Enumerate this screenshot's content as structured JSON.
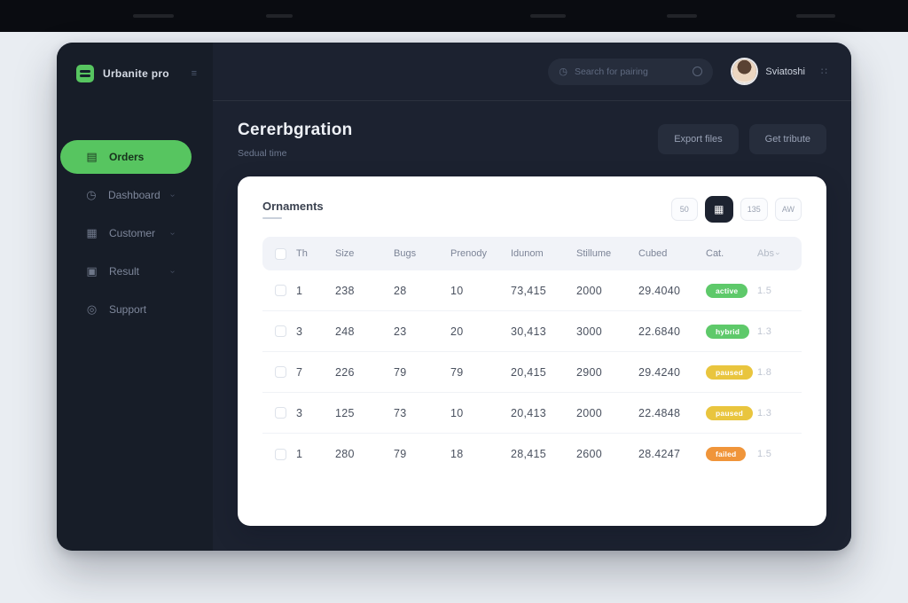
{
  "colors": {
    "accent_green": "#57c560",
    "badge_green": "#5ec96a",
    "badge_yellow": "#e9c53e",
    "badge_orange": "#f0953a",
    "window_bg": "#1c2230",
    "sidebar_bg": "#171d28",
    "card_bg": "#ffffff"
  },
  "sidebar": {
    "logo_text": "Urbanite pro",
    "collapse_icon": "≡",
    "items": [
      {
        "label": "Orders",
        "glyph": "▤",
        "icon": "orders-icon",
        "active": true,
        "chevron": false
      },
      {
        "label": "Dashboard",
        "glyph": "◷",
        "icon": "dashboard-icon",
        "active": false,
        "chevron": true
      },
      {
        "label": "Customer",
        "glyph": "▦",
        "icon": "customer-icon",
        "active": false,
        "chevron": true
      },
      {
        "label": "Result",
        "glyph": "▣",
        "icon": "result-icon",
        "active": false,
        "chevron": true
      },
      {
        "label": "Support",
        "glyph": "◎",
        "icon": "support-icon",
        "active": false,
        "chevron": false
      }
    ]
  },
  "topbar": {
    "search_placeholder": "Search for pairing",
    "user_name": "Sviatoshi",
    "apps_icon": "∷"
  },
  "page": {
    "title": "Cererbgration",
    "subtitle": "Sedual time",
    "actions": [
      {
        "label": "Export files"
      },
      {
        "label": "Get tribute"
      }
    ]
  },
  "card": {
    "title": "Ornaments",
    "view_toggles": [
      {
        "label": "50",
        "active": false,
        "icon": "list-view-icon"
      },
      {
        "label": "▦",
        "active": true,
        "icon": "grid-view-icon"
      },
      {
        "label": "135",
        "active": false,
        "icon": "page-size-icon"
      },
      {
        "label": "AW",
        "active": false,
        "icon": "more-view-icon"
      }
    ]
  },
  "table": {
    "columns": [
      "Th",
      "Size",
      "Bugs",
      "Prenody",
      "Idunom",
      "Stillume",
      "Cubed",
      "Cat.",
      "Abs"
    ],
    "sort_indicator": "›",
    "rows": [
      {
        "id": "1",
        "size": "238",
        "bugs": "28",
        "prenody": "10",
        "idunom": "73,415",
        "stillume": "2000",
        "cubed": "29.4040",
        "status": "active",
        "status_color": "green",
        "abs": "1.5"
      },
      {
        "id": "3",
        "size": "248",
        "bugs": "23",
        "prenody": "20",
        "idunom": "30,413",
        "stillume": "3000",
        "cubed": "22.6840",
        "status": "hybrid",
        "status_color": "green",
        "abs": "1.3"
      },
      {
        "id": "7",
        "size": "226",
        "bugs": "79",
        "prenody": "79",
        "idunom": "20,415",
        "stillume": "2900",
        "cubed": "29.4240",
        "status": "paused",
        "status_color": "yellow",
        "abs": "1.8"
      },
      {
        "id": "3",
        "size": "125",
        "bugs": "73",
        "prenody": "10",
        "idunom": "20,413",
        "stillume": "2000",
        "cubed": "22.4848",
        "status": "paused",
        "status_color": "yellow",
        "abs": "1.3"
      },
      {
        "id": "1",
        "size": "280",
        "bugs": "79",
        "prenody": "18",
        "idunom": "28,415",
        "stillume": "2600",
        "cubed": "28.4247",
        "status": "failed",
        "status_color": "orange",
        "abs": "1.5"
      }
    ]
  }
}
